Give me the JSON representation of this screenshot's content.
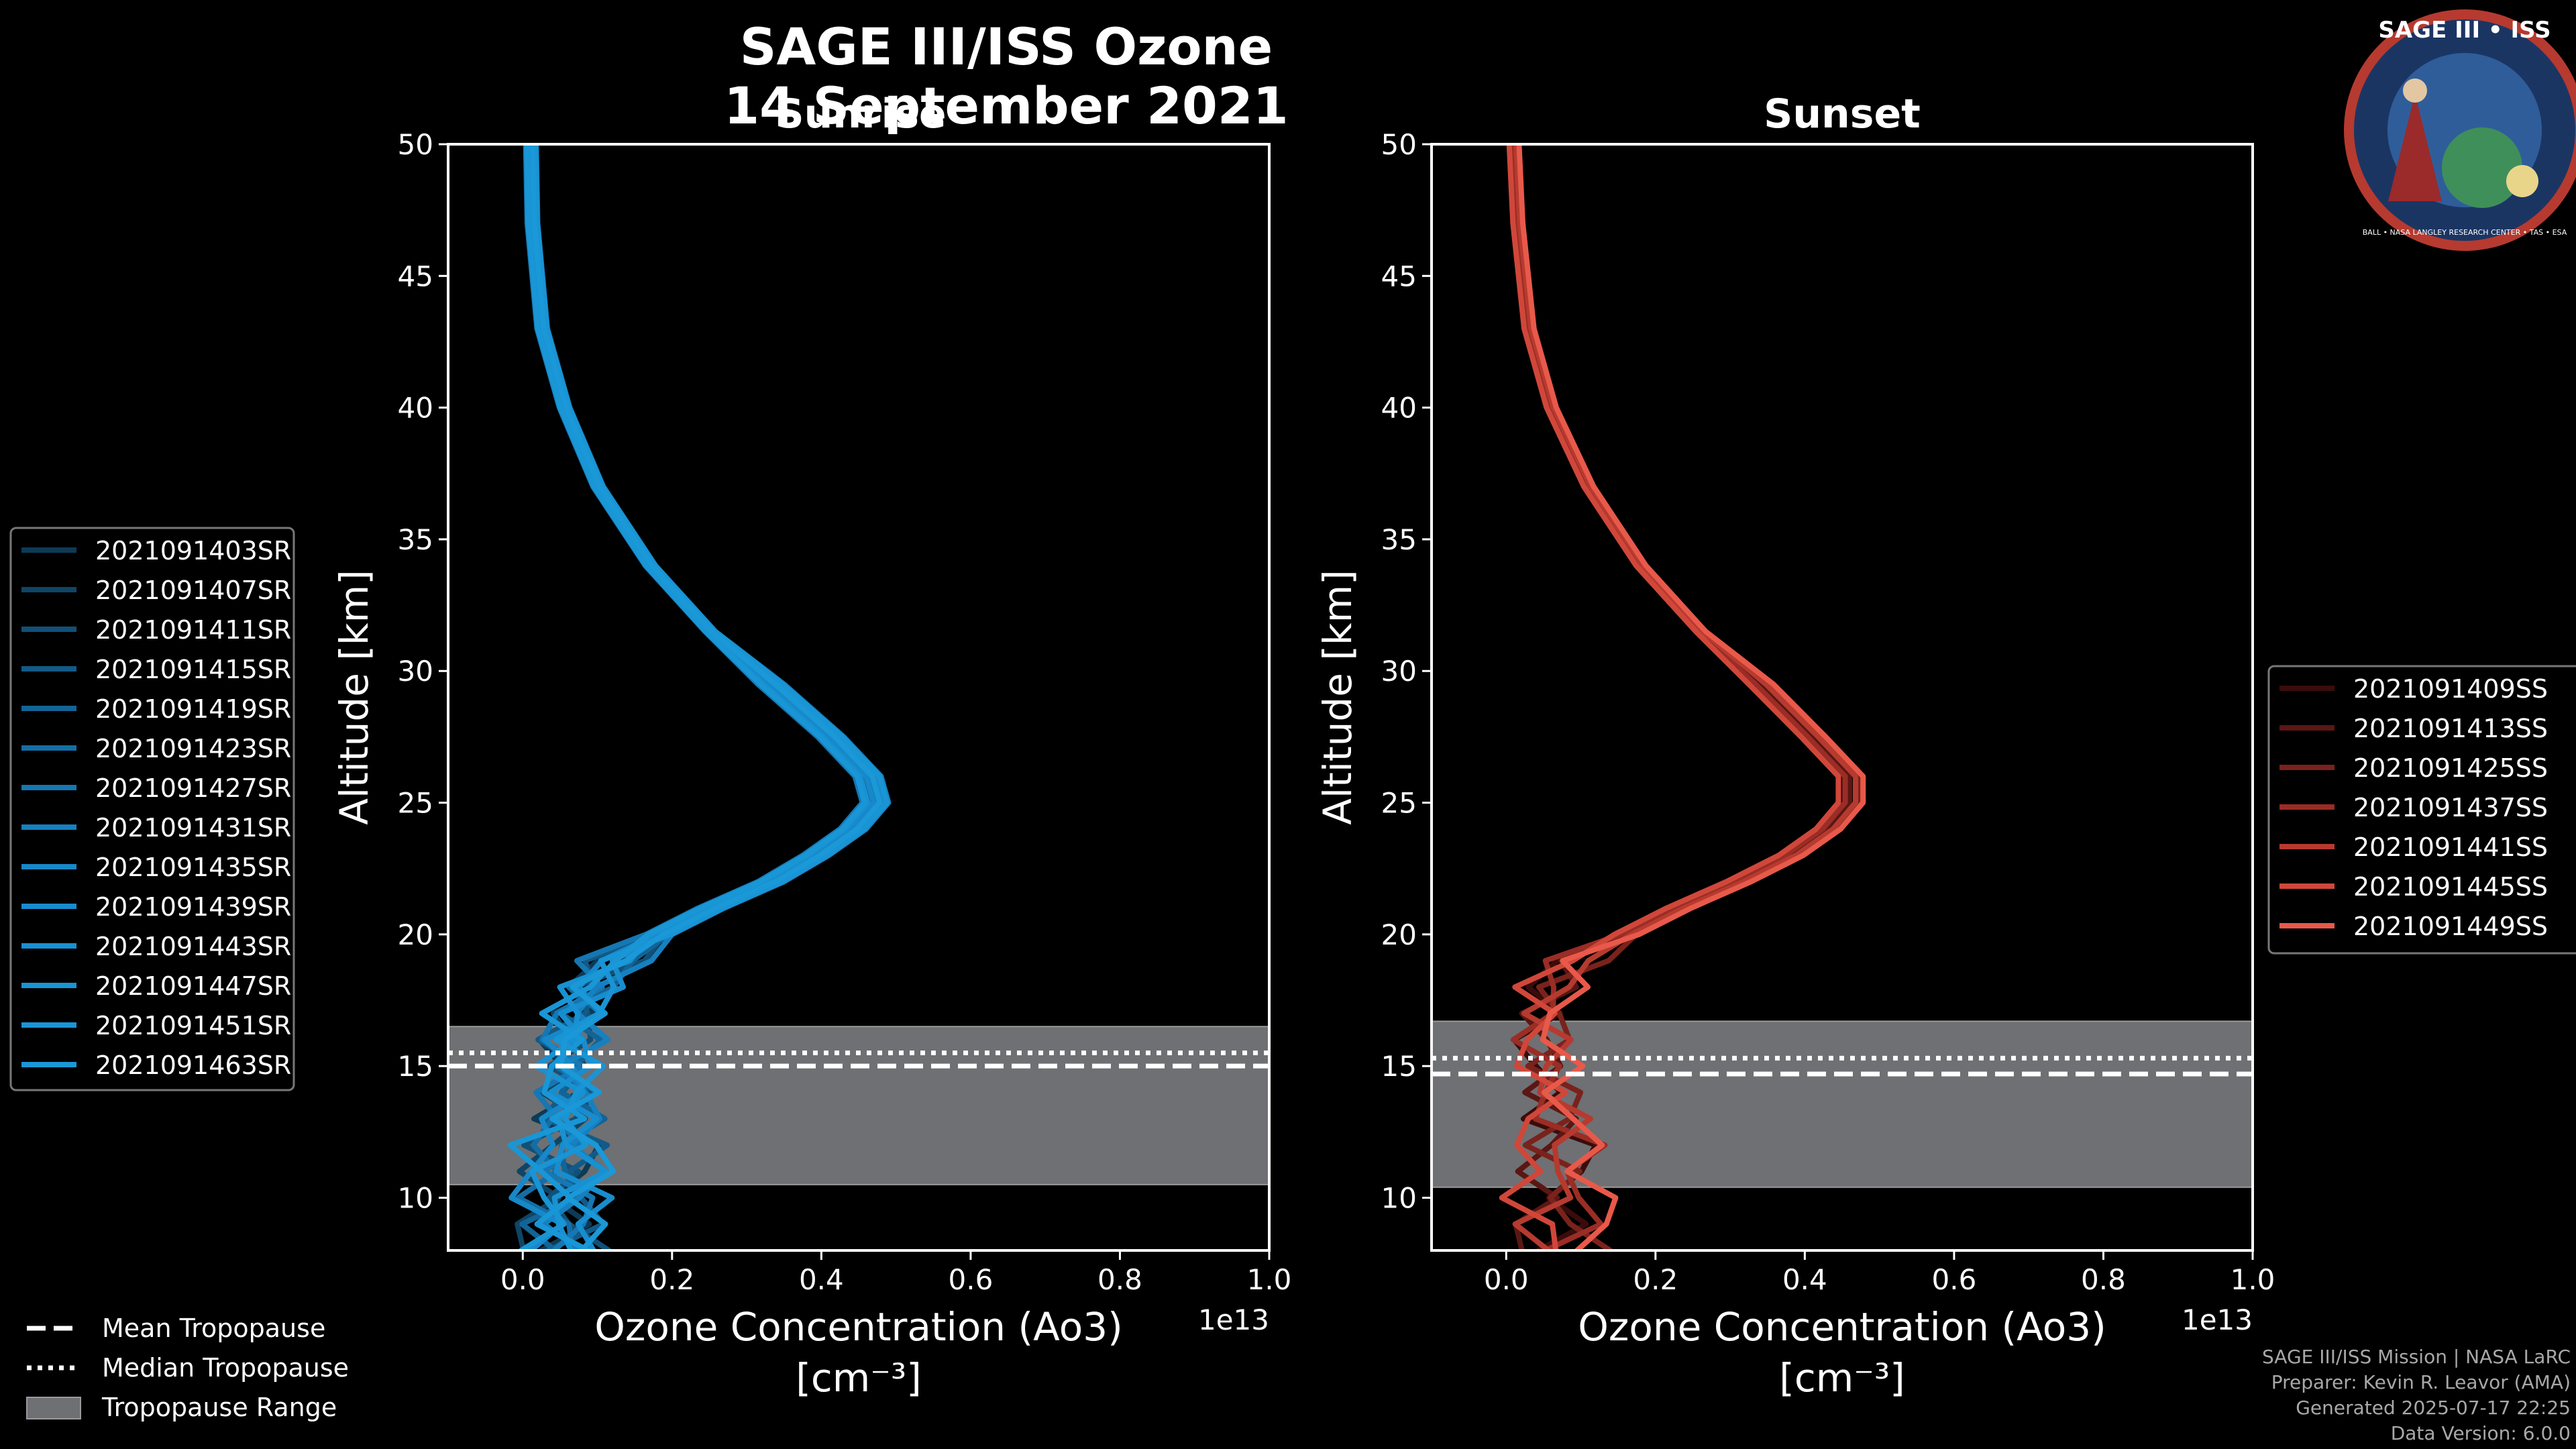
{
  "figure": {
    "title_line1": "SAGE III/ISS Ozone",
    "title_line2": "14 September 2021",
    "logo": {
      "text": "SAGE III • ISS",
      "ring_text": "BALL • NASA LANGLEY RESEARCH CENTER • TAS • ESA"
    },
    "credit_lines": [
      "SAGE III/ISS Mission | NASA LaRC",
      "Preparer: Kevin R. Leavor (AMA)",
      "Generated 2025-07-17 22:25",
      "Data Version: 6.0.0"
    ],
    "bottom_legend": [
      {
        "label": "Mean Tropopause",
        "style": "dashed"
      },
      {
        "label": "Median Tropopause",
        "style": "dotted"
      },
      {
        "label": "Tropopause Range",
        "style": "patch"
      }
    ]
  },
  "chart_data": [
    {
      "type": "line",
      "title": "Sunrise",
      "xlabel": "Ozone Concentration (Ao3)",
      "xlabel_units": "[cm⁻³]",
      "ylabel": "Altitude [km]",
      "x_offset_label": "1e13",
      "xlim": [
        -0.1,
        1.0
      ],
      "ylim": [
        8,
        50
      ],
      "xticks": [
        0.0,
        0.2,
        0.4,
        0.6,
        0.8,
        1.0
      ],
      "xtick_labels": [
        "0.0",
        "0.2",
        "0.4",
        "0.6",
        "0.8",
        "1.0"
      ],
      "yticks": [
        10,
        15,
        20,
        25,
        30,
        35,
        40,
        45,
        50
      ],
      "ytick_labels": [
        "10",
        "15",
        "20",
        "25",
        "30",
        "35",
        "40",
        "45",
        "50"
      ],
      "tropopause": {
        "mean": 15.0,
        "median": 15.5,
        "range": [
          10.5,
          16.5
        ]
      },
      "base_color": "#1996d4",
      "legend_location": "outside-left",
      "profile_x_1e13": [
        [
          0.01,
          50
        ],
        [
          0.012,
          47
        ],
        [
          0.025,
          43
        ],
        [
          0.055,
          40
        ],
        [
          0.1,
          37
        ],
        [
          0.17,
          34
        ],
        [
          0.25,
          31.5
        ],
        [
          0.33,
          29.5
        ],
        [
          0.41,
          27.5
        ],
        [
          0.46,
          26
        ],
        [
          0.47,
          25
        ],
        [
          0.44,
          24
        ],
        [
          0.39,
          23
        ],
        [
          0.33,
          22
        ],
        [
          0.25,
          21
        ],
        [
          0.18,
          20
        ],
        [
          0.12,
          19
        ],
        [
          0.09,
          18
        ],
        [
          0.07,
          17
        ],
        [
          0.06,
          16
        ],
        [
          0.06,
          15
        ],
        [
          0.06,
          14
        ],
        [
          0.06,
          13
        ],
        [
          0.05,
          12
        ],
        [
          0.05,
          11
        ],
        [
          0.05,
          10
        ],
        [
          0.05,
          9
        ],
        [
          0.05,
          8
        ]
      ],
      "series": [
        {
          "name": "2021091403SR",
          "shift": -0.01,
          "color": "#0e3a55"
        },
        {
          "name": "2021091407SR",
          "shift": 0.0,
          "color": "#0f4566"
        },
        {
          "name": "2021091411SR",
          "shift": 0.01,
          "color": "#115077"
        },
        {
          "name": "2021091415SR",
          "shift": -0.005,
          "color": "#125a87"
        },
        {
          "name": "2021091419SR",
          "shift": 0.015,
          "color": "#136496"
        },
        {
          "name": "2021091423SR",
          "shift": 0.005,
          "color": "#146ea5"
        },
        {
          "name": "2021091427SR",
          "shift": -0.015,
          "color": "#1577b3"
        },
        {
          "name": "2021091431SR",
          "shift": 0.02,
          "color": "#1680c0"
        },
        {
          "name": "2021091435SR",
          "shift": 0.0,
          "color": "#1788c9"
        },
        {
          "name": "2021091439SR",
          "shift": 0.012,
          "color": "#188dce"
        },
        {
          "name": "2021091443SR",
          "shift": -0.008,
          "color": "#1891d2"
        },
        {
          "name": "2021091447SR",
          "shift": 0.018,
          "color": "#1994d4"
        },
        {
          "name": "2021091451SR",
          "shift": -0.012,
          "color": "#1996d5"
        },
        {
          "name": "2021091463SR",
          "shift": 0.008,
          "color": "#1a98d7"
        }
      ]
    },
    {
      "type": "line",
      "title": "Sunset",
      "xlabel": "Ozone Concentration (Ao3)",
      "xlabel_units": "[cm⁻³]",
      "ylabel": "Altitude [km]",
      "x_offset_label": "1e13",
      "xlim": [
        -0.1,
        1.0
      ],
      "ylim": [
        8,
        50
      ],
      "xticks": [
        0.0,
        0.2,
        0.4,
        0.6,
        0.8,
        1.0
      ],
      "xtick_labels": [
        "0.0",
        "0.2",
        "0.4",
        "0.6",
        "0.8",
        "1.0"
      ],
      "yticks": [
        10,
        15,
        20,
        25,
        30,
        35,
        40,
        45,
        50
      ],
      "ytick_labels": [
        "10",
        "15",
        "20",
        "25",
        "30",
        "35",
        "40",
        "45",
        "50"
      ],
      "tropopause": {
        "mean": 14.7,
        "median": 15.3,
        "range": [
          10.4,
          16.7
        ]
      },
      "base_color": "#e8594a",
      "legend_location": "outside-right",
      "profile_x_1e13": [
        [
          0.01,
          50
        ],
        [
          0.015,
          47
        ],
        [
          0.03,
          43
        ],
        [
          0.06,
          40
        ],
        [
          0.11,
          37
        ],
        [
          0.18,
          34
        ],
        [
          0.26,
          31.5
        ],
        [
          0.34,
          29.5
        ],
        [
          0.41,
          27.5
        ],
        [
          0.46,
          26
        ],
        [
          0.46,
          25
        ],
        [
          0.43,
          24
        ],
        [
          0.38,
          23
        ],
        [
          0.31,
          22
        ],
        [
          0.23,
          21
        ],
        [
          0.16,
          20
        ],
        [
          0.09,
          19
        ],
        [
          0.06,
          18
        ],
        [
          0.05,
          17
        ],
        [
          0.05,
          16
        ],
        [
          0.05,
          15
        ],
        [
          0.06,
          14
        ],
        [
          0.07,
          13
        ],
        [
          0.07,
          12
        ],
        [
          0.07,
          11
        ],
        [
          0.07,
          10
        ],
        [
          0.07,
          9
        ],
        [
          0.07,
          8
        ]
      ],
      "series": [
        {
          "name": "2021091409SS",
          "shift": -0.012,
          "color": "#3a0c0b"
        },
        {
          "name": "2021091413SS",
          "shift": 0.0,
          "color": "#5a1714"
        },
        {
          "name": "2021091425SS",
          "shift": 0.014,
          "color": "#7a221c"
        },
        {
          "name": "2021091437SS",
          "shift": -0.006,
          "color": "#9a2d25"
        },
        {
          "name": "2021091441SS",
          "shift": 0.008,
          "color": "#b63a2f"
        },
        {
          "name": "2021091445SS",
          "shift": -0.015,
          "color": "#d0473a"
        },
        {
          "name": "2021091449SS",
          "shift": 0.018,
          "color": "#e8594a"
        }
      ]
    }
  ]
}
